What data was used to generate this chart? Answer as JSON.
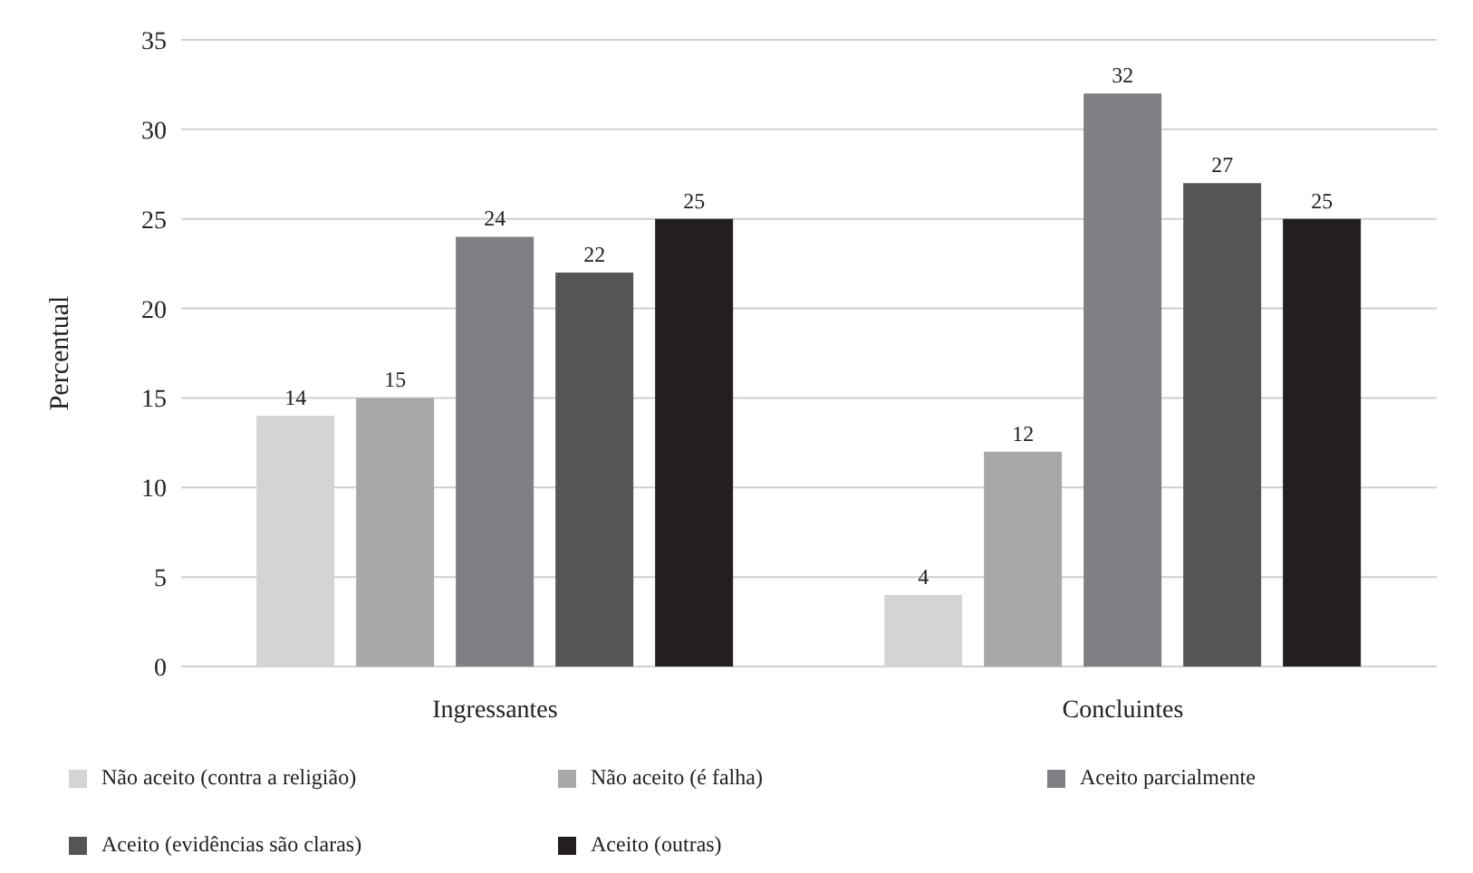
{
  "chart_data": {
    "type": "bar",
    "ylabel": "Percentual",
    "categories": [
      "Ingressantes",
      "Concluintes"
    ],
    "series": [
      {
        "name": "Não aceito (contra a religião)",
        "color": "#d4d4d6",
        "values": [
          14,
          4
        ]
      },
      {
        "name": "Não aceito (é falha)",
        "color": "#a8a8ab",
        "values": [
          15,
          12
        ]
      },
      {
        "name": "Aceito parcialmente",
        "color": "#808084",
        "values": [
          24,
          32
        ]
      },
      {
        "name": "Aceito (evidências são claras)",
        "color": "#555557",
        "values": [
          22,
          27
        ]
      },
      {
        "name": "Aceito (outras)",
        "color": "#231f20",
        "values": [
          25,
          25
        ]
      }
    ],
    "ylim": [
      0,
      35
    ],
    "yticks": [
      0,
      5,
      10,
      15,
      20,
      25,
      30,
      35
    ],
    "grid": "y",
    "data_labels": true,
    "legend": "bottom"
  }
}
